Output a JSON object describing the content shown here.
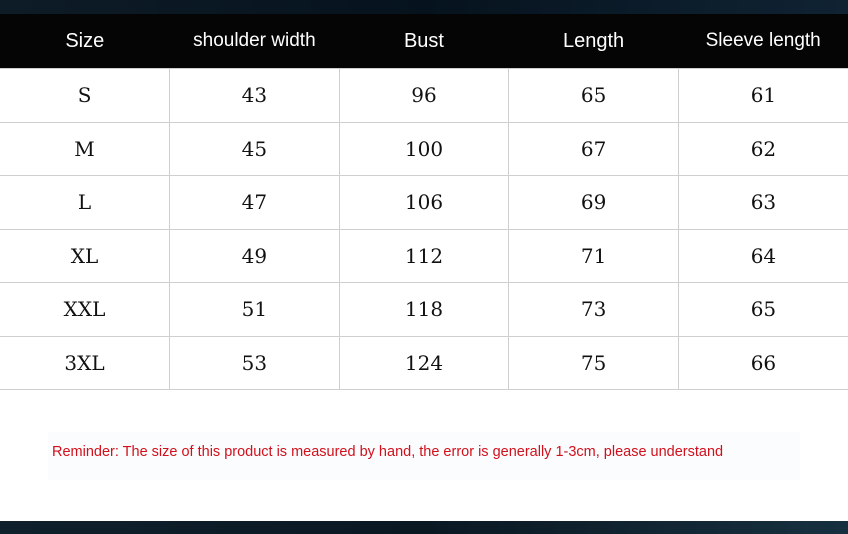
{
  "table": {
    "headers": [
      "Size",
      "shoulder width",
      "Bust",
      "Length",
      "Sleeve length"
    ],
    "rows": [
      [
        "S",
        "43",
        "96",
        "65",
        "61"
      ],
      [
        "M",
        "45",
        "100",
        "67",
        "62"
      ],
      [
        "L",
        "47",
        "106",
        "69",
        "63"
      ],
      [
        "XL",
        "49",
        "112",
        "71",
        "64"
      ],
      [
        "XXL",
        "51",
        "118",
        "73",
        "65"
      ],
      [
        "3XL",
        "53",
        "124",
        "75",
        "66"
      ]
    ]
  },
  "reminder": "Reminder: The size of this product is measured by hand, the error is generally 1-3cm, please understand",
  "colors": {
    "header_bg": "#050505",
    "reminder_text": "#d2101c"
  }
}
